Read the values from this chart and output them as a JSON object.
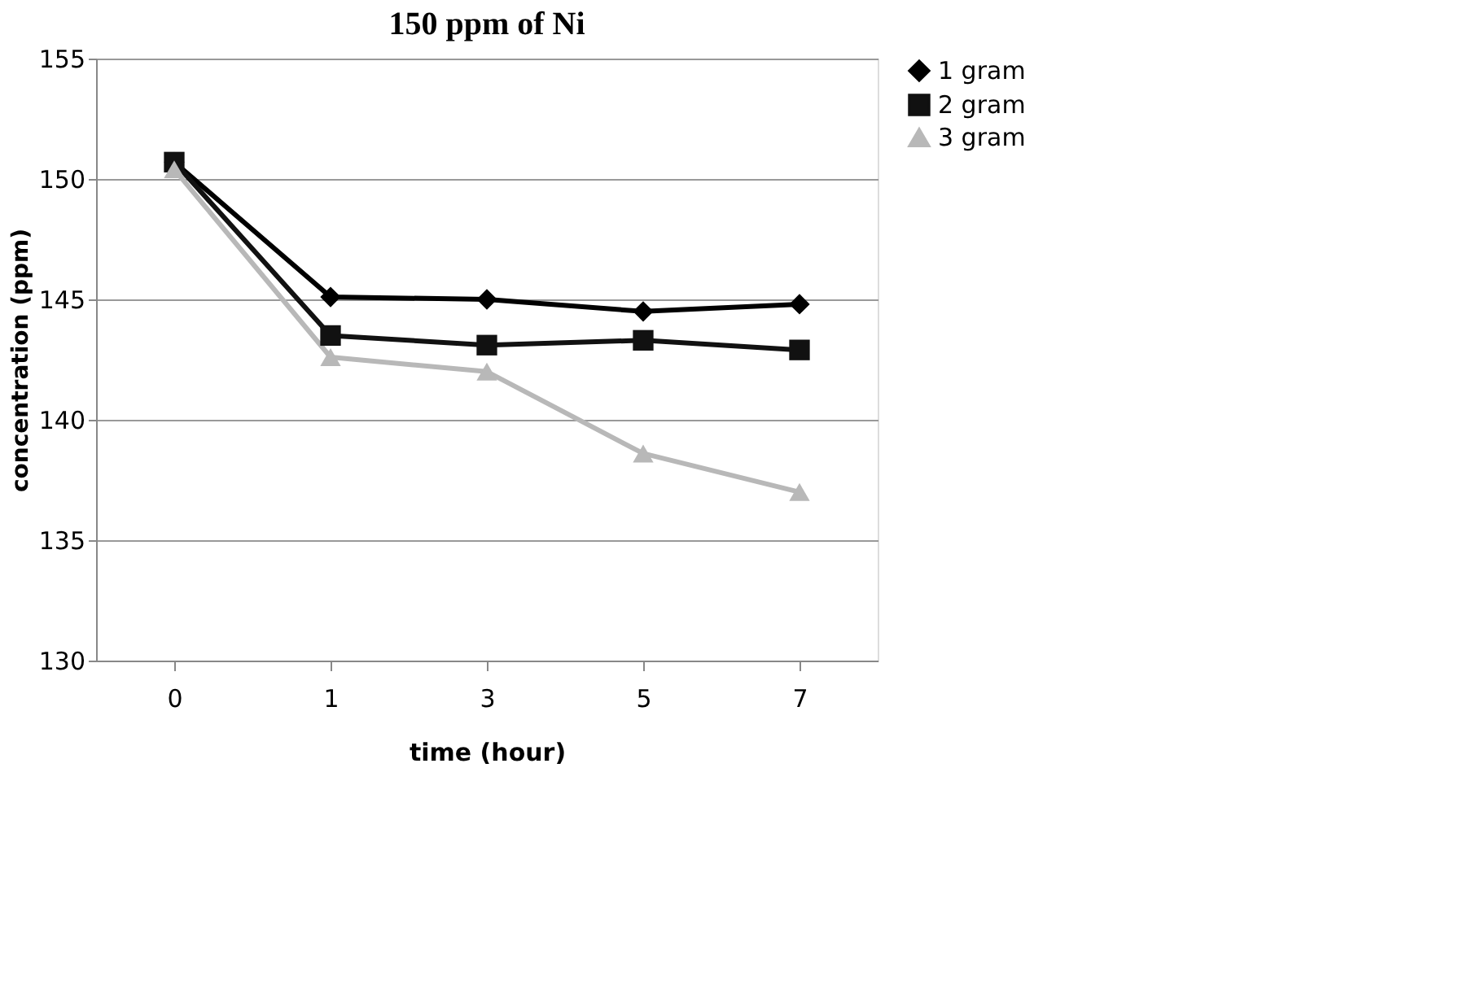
{
  "chart_data": {
    "type": "line",
    "title": "150 ppm of Ni",
    "xlabel": "time (hour)",
    "ylabel": "concentration (ppm)",
    "categories": [
      "0",
      "1",
      "3",
      "5",
      "7"
    ],
    "series": [
      {
        "name": "1 gram",
        "color": "#000000",
        "marker": "diamond",
        "values": [
          150.7,
          145.1,
          145.0,
          144.5,
          144.8
        ]
      },
      {
        "name": "2 gram",
        "color": "#111111",
        "marker": "square",
        "values": [
          150.7,
          143.5,
          143.1,
          143.3,
          142.9
        ]
      },
      {
        "name": "3 gram",
        "color": "#b8b8b8",
        "marker": "triangle",
        "values": [
          150.4,
          142.6,
          142.0,
          138.6,
          137.0
        ]
      }
    ],
    "ylim": [
      130,
      155
    ],
    "yticks": [
      130,
      135,
      140,
      145,
      150,
      155
    ],
    "grid": "y",
    "legend": "right",
    "line_style": "solid"
  }
}
